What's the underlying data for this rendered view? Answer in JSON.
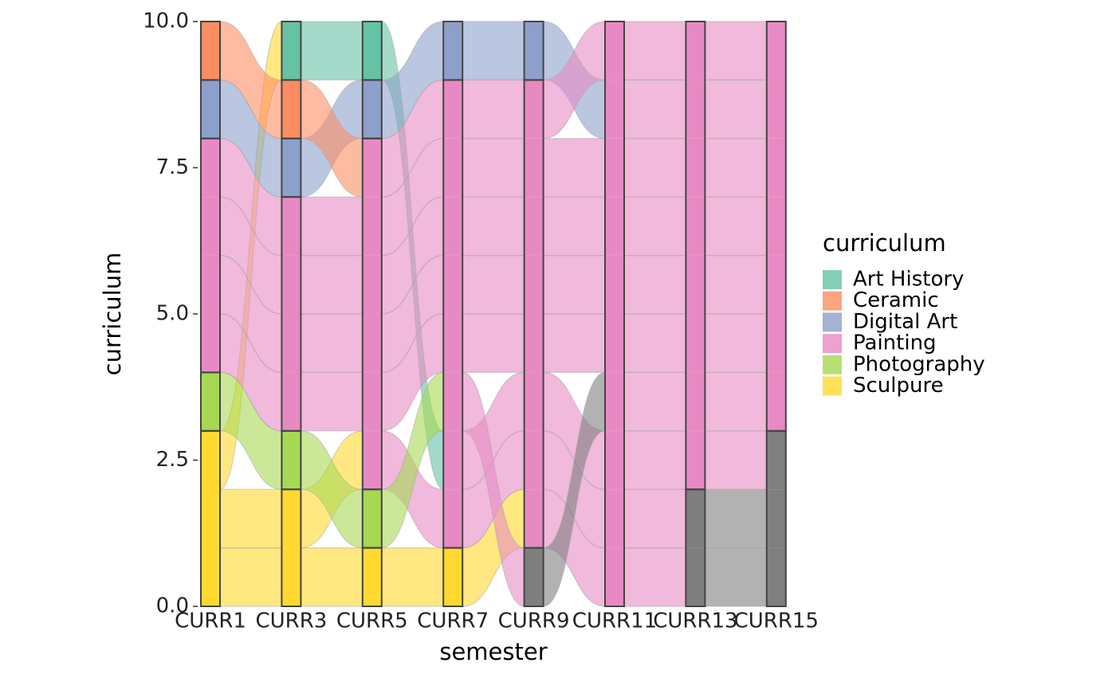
{
  "chart_data": {
    "type": "alluvial",
    "x_label": "semester",
    "y_label": "curriculum",
    "legend_title": "curriculum",
    "categories": [
      "CURR1",
      "CURR3",
      "CURR5",
      "CURR7",
      "CURR9",
      "CURR11",
      "CURR13",
      "CURR15"
    ],
    "ylim": [
      0,
      10
    ],
    "yticks": [
      {
        "value": 0,
        "label": "0.0"
      },
      {
        "value": 2.5,
        "label": "2.5"
      },
      {
        "value": 5,
        "label": "5.0"
      },
      {
        "value": 7.5,
        "label": "7.5"
      },
      {
        "value": 10,
        "label": "10.0"
      }
    ],
    "strata": [
      {
        "name": "Art History",
        "color": "#66c2a5"
      },
      {
        "name": "Ceramic",
        "color": "#fc8d62"
      },
      {
        "name": "Digital Art",
        "color": "#8da0cb"
      },
      {
        "name": "Painting",
        "color": "#e78ac3"
      },
      {
        "name": "Photography",
        "color": "#a6d854"
      },
      {
        "name": "Sculpure",
        "color": "#ffd92f"
      }
    ],
    "na_color": "#7f7f7f",
    "alluvia": [
      [
        "Sculpure",
        "Sculpure",
        "Sculpure",
        "Sculpure",
        "Painting",
        "Painting",
        null,
        null
      ],
      [
        "Sculpure",
        "Sculpure",
        "Painting",
        "Painting",
        "Painting",
        "Painting",
        null,
        null
      ],
      [
        "Sculpure",
        "Art History",
        "Art History",
        "Painting",
        "Painting",
        "Painting",
        "Painting",
        null
      ],
      [
        "Photography",
        "Photography",
        "Photography",
        "Painting",
        null,
        "Painting",
        "Painting",
        "Painting"
      ],
      [
        "Painting",
        "Painting",
        "Painting",
        "Painting",
        "Painting",
        "Painting",
        "Painting",
        "Painting"
      ],
      [
        "Painting",
        "Painting",
        "Painting",
        "Painting",
        "Painting",
        "Painting",
        "Painting",
        "Painting"
      ],
      [
        "Painting",
        "Painting",
        "Painting",
        "Painting",
        "Painting",
        "Painting",
        "Painting",
        "Painting"
      ],
      [
        "Painting",
        "Painting",
        "Painting",
        "Painting",
        "Painting",
        "Painting",
        "Painting",
        "Painting"
      ],
      [
        "Digital Art",
        "Digital Art",
        "Digital Art",
        "Digital Art",
        "Digital Art",
        "Painting",
        "Painting",
        "Painting"
      ],
      [
        "Ceramic",
        "Ceramic",
        "Painting",
        "Painting",
        "Painting",
        "Painting",
        "Painting",
        "Painting"
      ]
    ]
  }
}
